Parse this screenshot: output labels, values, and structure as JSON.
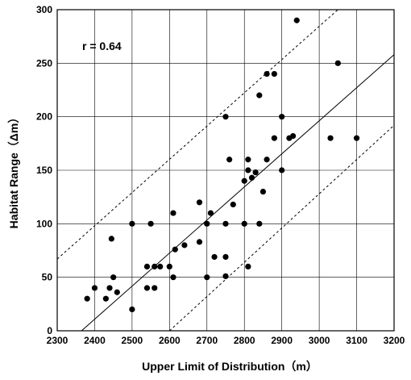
{
  "chart_data": {
    "type": "scatter",
    "xlabel": "Upper Limit of Distribution（m）",
    "ylabel": "Habitat Range（Δm）",
    "annotation": "r = 0.64",
    "xlim": [
      2300,
      3200
    ],
    "ylim": [
      0,
      300
    ],
    "xticks": [
      2300,
      2400,
      2500,
      2600,
      2700,
      2800,
      2900,
      3000,
      3100,
      3200
    ],
    "yticks": [
      0,
      50,
      100,
      150,
      200,
      250,
      300
    ],
    "grid": true,
    "points": [
      [
        2380,
        30
      ],
      [
        2400,
        40
      ],
      [
        2430,
        30
      ],
      [
        2440,
        40
      ],
      [
        2445,
        86
      ],
      [
        2450,
        50
      ],
      [
        2460,
        36
      ],
      [
        2500,
        20
      ],
      [
        2500,
        100
      ],
      [
        2540,
        60
      ],
      [
        2540,
        40
      ],
      [
        2550,
        100
      ],
      [
        2560,
        60
      ],
      [
        2560,
        40
      ],
      [
        2575,
        60
      ],
      [
        2600,
        60
      ],
      [
        2610,
        50
      ],
      [
        2610,
        110
      ],
      [
        2615,
        76
      ],
      [
        2640,
        80
      ],
      [
        2680,
        120
      ],
      [
        2680,
        83
      ],
      [
        2700,
        100
      ],
      [
        2700,
        50
      ],
      [
        2710,
        110
      ],
      [
        2720,
        69
      ],
      [
        2750,
        200
      ],
      [
        2750,
        100
      ],
      [
        2750,
        69
      ],
      [
        2750,
        51
      ],
      [
        2760,
        160
      ],
      [
        2770,
        118
      ],
      [
        2800,
        140
      ],
      [
        2800,
        100
      ],
      [
        2810,
        160
      ],
      [
        2810,
        150
      ],
      [
        2810,
        60
      ],
      [
        2820,
        143
      ],
      [
        2830,
        148
      ],
      [
        2840,
        220
      ],
      [
        2840,
        100
      ],
      [
        2850,
        130
      ],
      [
        2860,
        160
      ],
      [
        2860,
        240
      ],
      [
        2880,
        240
      ],
      [
        2880,
        180
      ],
      [
        2900,
        200
      ],
      [
        2900,
        150
      ],
      [
        2920,
        180
      ],
      [
        2930,
        182
      ],
      [
        2940,
        290
      ],
      [
        3030,
        180
      ],
      [
        3050,
        250
      ],
      [
        3100,
        180
      ]
    ],
    "regression_line": [
      [
        2365,
        0
      ],
      [
        3200,
        258
      ]
    ],
    "upper_bound_line": [
      [
        2300,
        67
      ],
      [
        3050,
        300
      ]
    ],
    "lower_bound_line": [
      [
        2600,
        0
      ],
      [
        3200,
        192
      ]
    ],
    "regression_style": "solid",
    "bound_style": "dotted"
  }
}
